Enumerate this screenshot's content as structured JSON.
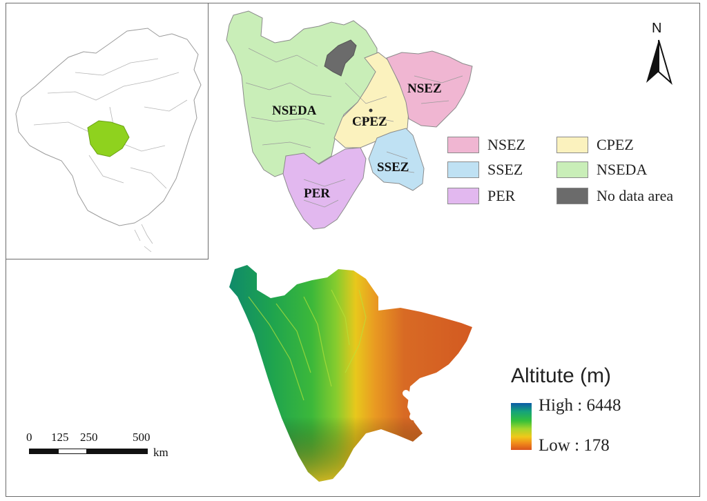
{
  "zones": {
    "NSEDA": "NSEDA",
    "CPEZ": "CPEZ",
    "NSEZ": "NSEZ",
    "SSEZ": "SSEZ",
    "PER": "PER"
  },
  "legend": [
    {
      "label": "NSEZ",
      "color": "#f0b6d2"
    },
    {
      "label": "CPEZ",
      "color": "#fbf2be"
    },
    {
      "label": "SSEZ",
      "color": "#bfe1f3"
    },
    {
      "label": "NSEDA",
      "color": "#c9eeb8"
    },
    {
      "label": "PER",
      "color": "#e2b8ef"
    },
    {
      "label": "No data area",
      "color": "#6b6b6b"
    }
  ],
  "altitude": {
    "title": "Altitute (m)",
    "high_label": "High : 6448",
    "low_label": "Low : 178"
  },
  "scale_bar": {
    "ticks": [
      "0",
      "125",
      "250",
      "500"
    ],
    "unit": "km"
  },
  "north_arrow": {
    "letter": "N",
    "icon": "north-arrow-icon"
  },
  "colors": {
    "inset_highlight": "#8fd21e",
    "frame": "#6b6b6b"
  }
}
